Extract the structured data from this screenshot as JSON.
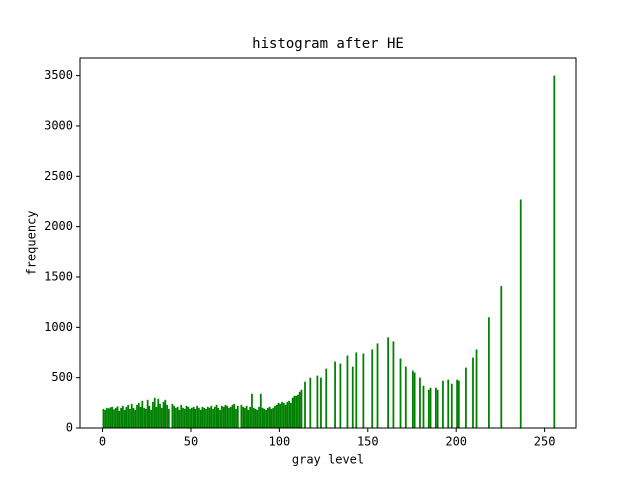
{
  "chart_data": {
    "type": "histogram",
    "title": "histogram after HE",
    "x_label": "gray level",
    "y_label": "frequency",
    "color": "#008000",
    "bins": [
      0,
      1,
      2,
      3,
      4,
      5,
      6,
      7,
      8,
      9,
      10,
      11,
      12,
      13,
      14,
      15,
      16,
      17,
      18,
      19,
      20,
      21,
      22,
      23,
      24,
      25,
      26,
      27,
      28,
      29,
      30,
      31,
      32,
      33,
      34,
      35,
      36,
      37,
      38,
      39,
      40,
      41,
      42,
      43,
      44,
      45,
      46,
      47,
      48,
      49,
      50,
      51,
      52,
      53,
      54,
      55,
      56,
      57,
      58,
      59,
      60,
      61,
      62,
      63,
      64,
      65,
      66,
      67,
      68,
      69,
      70,
      71,
      72,
      73,
      74,
      75,
      76,
      77,
      78,
      79,
      80,
      81,
      82,
      83,
      84,
      85,
      86,
      87,
      88,
      89,
      90,
      91,
      92,
      93,
      94,
      95,
      96,
      97,
      98,
      99,
      100,
      101,
      102,
      103,
      104,
      105,
      106,
      107,
      108,
      109,
      110,
      111,
      112,
      113,
      114,
      115,
      116,
      117,
      118,
      119,
      120,
      121,
      122,
      123,
      124,
      125,
      126,
      127,
      128,
      129,
      130,
      131,
      132,
      133,
      134,
      135,
      136,
      137,
      138,
      139,
      140,
      141,
      142,
      143,
      144,
      145,
      146,
      147,
      148,
      149,
      150,
      151,
      152,
      153,
      154,
      155,
      156,
      157,
      158,
      159,
      160,
      161,
      162,
      163,
      164,
      165,
      166,
      167,
      168,
      169,
      170,
      171,
      172,
      173,
      174,
      175,
      176,
      177,
      178,
      179,
      180,
      181,
      182,
      183,
      184,
      185,
      186,
      187,
      188,
      189,
      190,
      191,
      192,
      193,
      194,
      195,
      196,
      197,
      198,
      199,
      200,
      201,
      202,
      203,
      204,
      205,
      206,
      207,
      208,
      209,
      210,
      211,
      212,
      213,
      214,
      215,
      216,
      217,
      218,
      219,
      220,
      221,
      222,
      223,
      224,
      225,
      226,
      227,
      228,
      229,
      230,
      231,
      232,
      233,
      234,
      235,
      236,
      237,
      238,
      239,
      240,
      241,
      242,
      243,
      244,
      245,
      246,
      247,
      248,
      249,
      250,
      251,
      252,
      253,
      254,
      255,
      256
    ],
    "values": [
      190,
      180,
      200,
      195,
      205,
      210,
      185,
      200,
      215,
      170,
      200,
      220,
      180,
      210,
      230,
      190,
      240,
      200,
      180,
      230,
      250,
      210,
      270,
      200,
      190,
      280,
      220,
      180,
      260,
      300,
      210,
      290,
      240,
      200,
      260,
      280,
      230,
      190,
      0,
      240,
      220,
      200,
      210,
      180,
      230,
      200,
      190,
      220,
      210,
      190,
      200,
      210,
      190,
      220,
      200,
      180,
      210,
      200,
      190,
      210,
      200,
      220,
      190,
      210,
      230,
      200,
      180,
      220,
      210,
      230,
      220,
      200,
      210,
      230,
      240,
      190,
      220,
      0,
      230,
      210,
      200,
      220,
      180,
      210,
      340,
      200,
      190,
      180,
      210,
      340,
      200,
      190,
      180,
      200,
      210,
      190,
      200,
      220,
      230,
      250,
      240,
      260,
      250,
      230,
      260,
      270,
      250,
      300,
      320,
      320,
      330,
      360,
      380,
      0,
      460,
      0,
      0,
      500,
      0,
      0,
      0,
      520,
      0,
      500,
      0,
      0,
      590,
      0,
      0,
      0,
      0,
      660,
      0,
      0,
      640,
      0,
      0,
      0,
      720,
      0,
      0,
      610,
      0,
      750,
      0,
      0,
      0,
      740,
      0,
      0,
      0,
      0,
      780,
      0,
      0,
      840,
      0,
      0,
      0,
      0,
      0,
      900,
      0,
      0,
      860,
      0,
      0,
      0,
      690,
      0,
      0,
      610,
      0,
      0,
      0,
      570,
      550,
      0,
      0,
      500,
      0,
      420,
      0,
      0,
      380,
      400,
      0,
      0,
      400,
      380,
      0,
      0,
      470,
      0,
      0,
      480,
      0,
      440,
      0,
      0,
      480,
      470,
      0,
      0,
      0,
      600,
      0,
      0,
      0,
      700,
      0,
      780,
      0,
      0,
      0,
      0,
      0,
      0,
      1100,
      0,
      0,
      0,
      0,
      0,
      0,
      1410,
      0,
      0,
      0,
      0,
      0,
      0,
      0,
      0,
      0,
      0,
      2270,
      0,
      0,
      0,
      0,
      0,
      0,
      0,
      0,
      0,
      0,
      0,
      0,
      0,
      0,
      0,
      0,
      0,
      0,
      3500
    ],
    "xlim": [
      -12.75,
      267.75
    ],
    "ylim": [
      0,
      3675
    ],
    "xticks": [
      0,
      50,
      100,
      150,
      200,
      250
    ],
    "yticks": [
      0,
      500,
      1000,
      1500,
      2000,
      2500,
      3000,
      3500
    ]
  }
}
